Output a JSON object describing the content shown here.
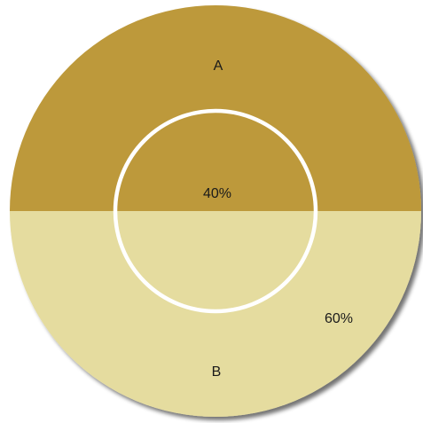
{
  "chart_data": {
    "type": "pie",
    "title": "",
    "categories": [
      "A",
      "B"
    ],
    "values": [
      40,
      60
    ],
    "value_labels": [
      "40%",
      "60%"
    ],
    "colors": {
      "A": "#bd993b",
      "B": "#e5dc9f",
      "inner_ring": "#ffffff",
      "shadow": "#8a8a8a"
    },
    "legend": "none",
    "grid": false
  }
}
